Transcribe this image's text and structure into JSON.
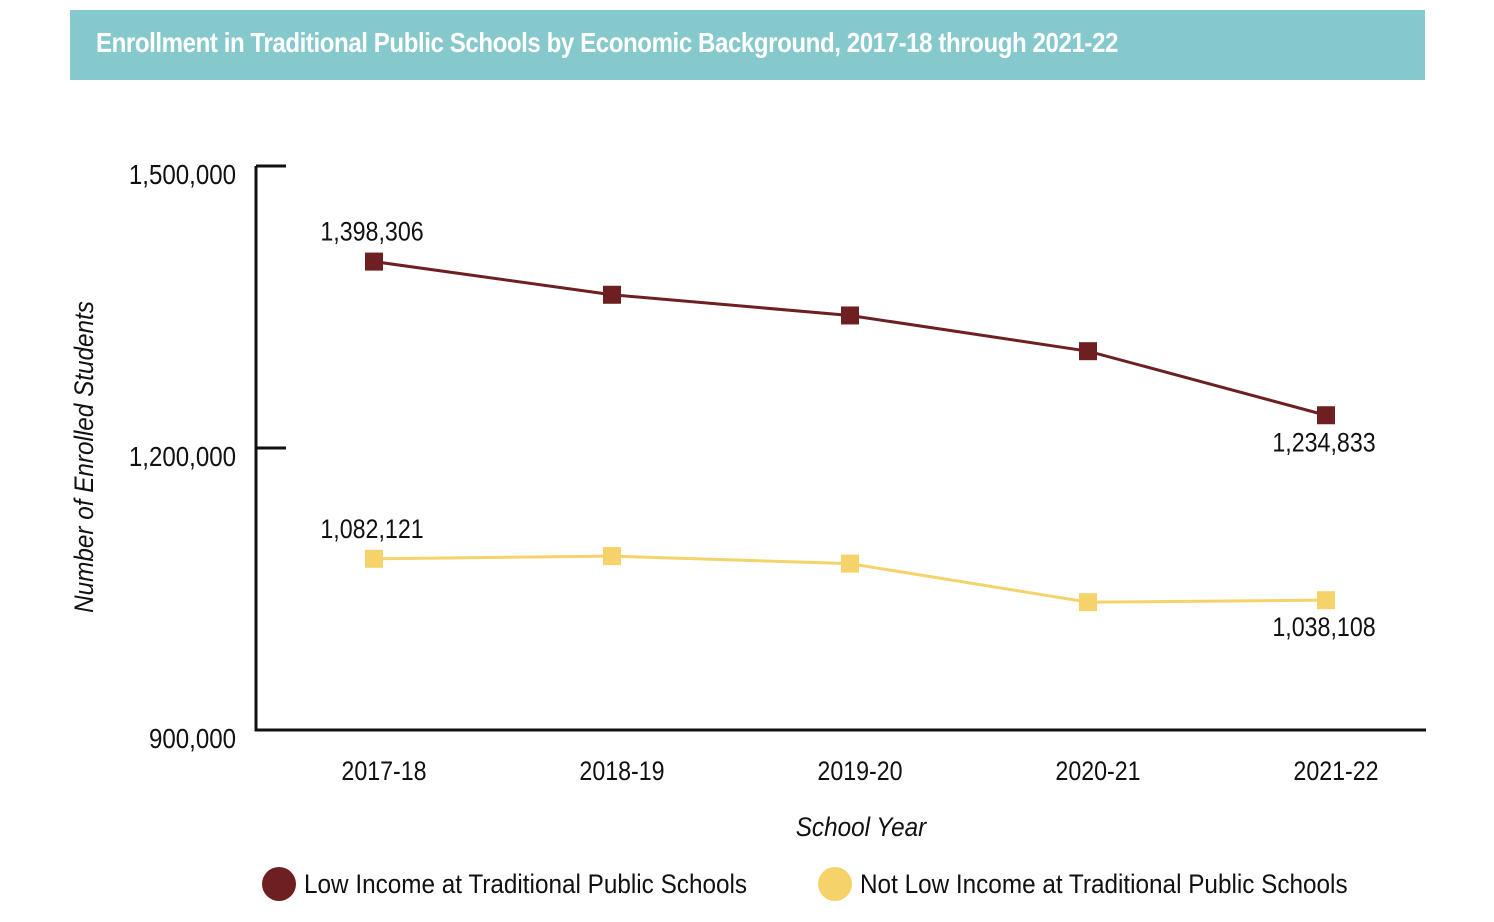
{
  "chart_data": {
    "type": "line",
    "title": "Enrollment in Traditional Public Schools by Economic Background, 2017-18 through 2021-22",
    "xlabel": "School Year",
    "ylabel": "Number of Enrolled Students",
    "categories": [
      "2017-18",
      "2018-19",
      "2019-20",
      "2020-21",
      "2021-22"
    ],
    "ylim": [
      900000,
      1500000
    ],
    "yticks": [
      900000,
      1200000,
      1500000
    ],
    "ytick_labels": [
      "900,000",
      "1,200,000",
      "1,500,000"
    ],
    "grid": false,
    "legend_position": "bottom",
    "series": [
      {
        "name": "Low Income at Traditional Public Schools",
        "color": "#6e1f22",
        "values": [
          1398306,
          1363000,
          1341000,
          1303000,
          1234833
        ],
        "labels": [
          {
            "index": 0,
            "text": "1,398,306",
            "position": "above"
          },
          {
            "index": 4,
            "text": "1,234,833",
            "position": "below"
          }
        ]
      },
      {
        "name": "Not Low Income at Traditional Public Schools",
        "color": "#f6d36a",
        "values": [
          1082121,
          1085000,
          1077000,
          1036000,
          1038108
        ],
        "labels": [
          {
            "index": 0,
            "text": "1,082,121",
            "position": "above"
          },
          {
            "index": 4,
            "text": "1,038,108",
            "position": "below"
          }
        ]
      }
    ]
  },
  "colors": {
    "banner": "#86c9cc",
    "title_text": "#ffffff",
    "axis": "#111111"
  }
}
